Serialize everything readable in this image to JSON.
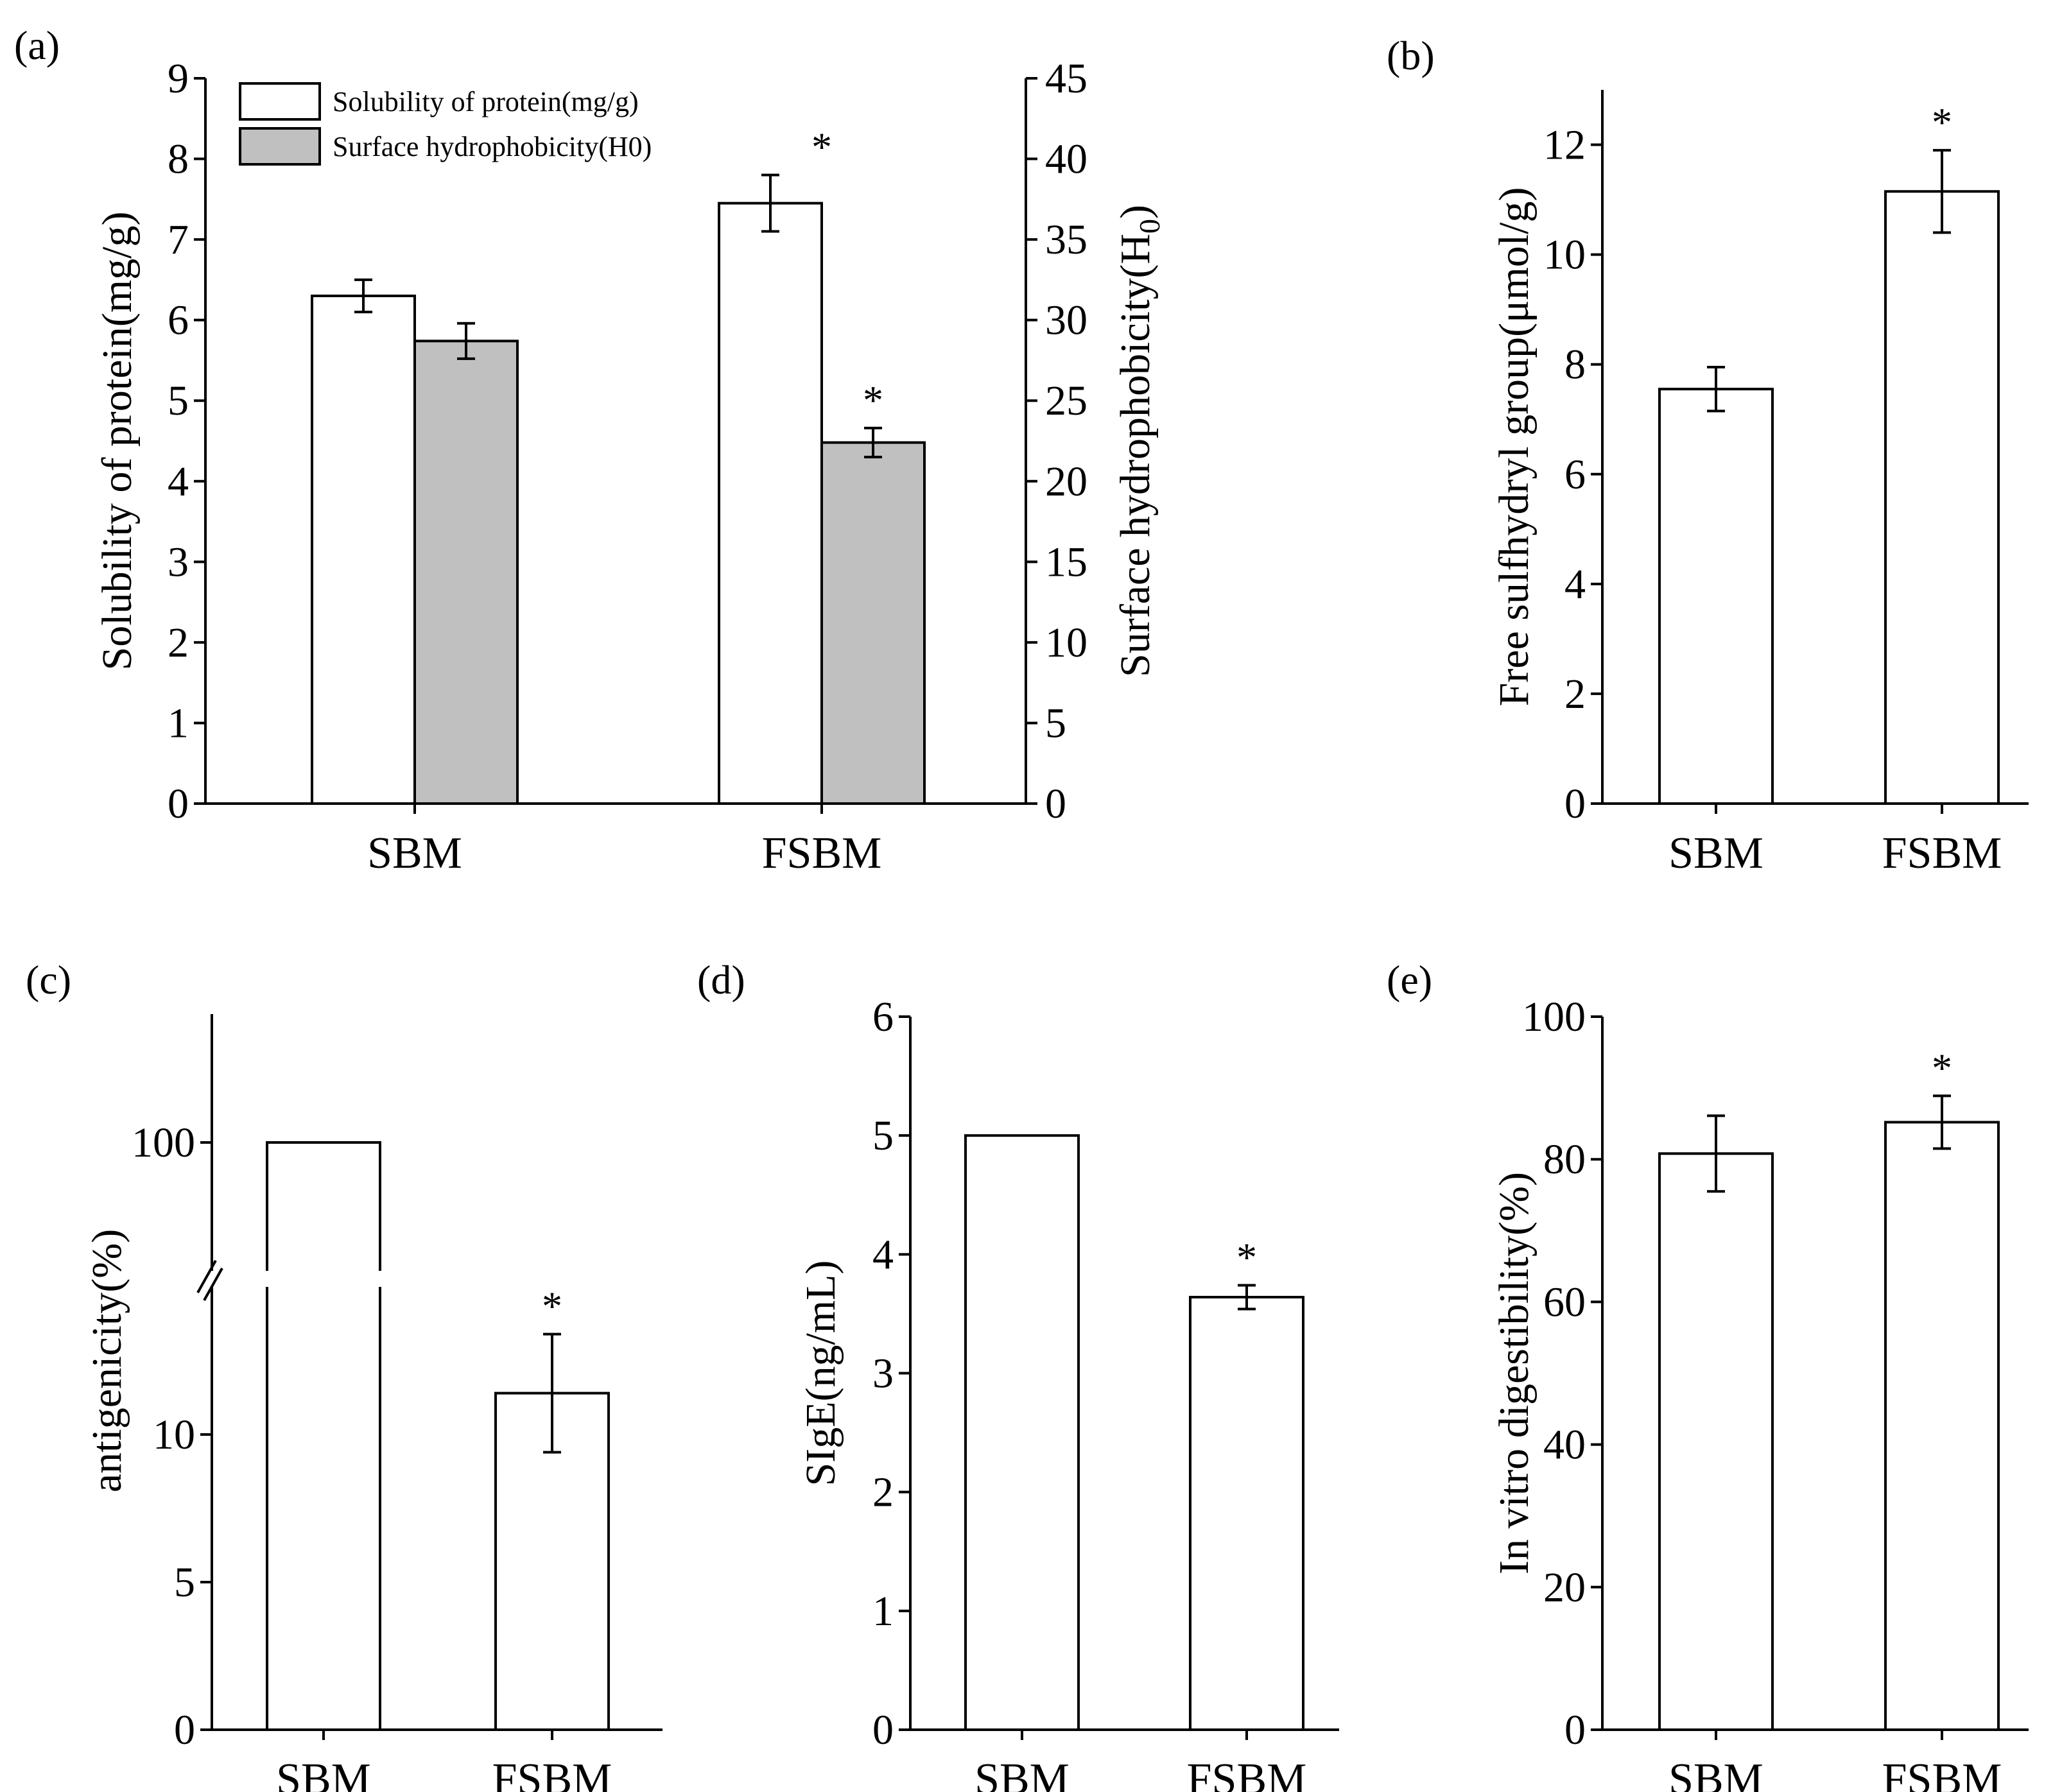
{
  "chart_data": [
    {
      "panel": "(a)",
      "type": "bar",
      "categories": [
        "SBM",
        "FSBM"
      ],
      "series": [
        {
          "name": "Solubility of protein(mg/g)",
          "axis": "left",
          "fill": "#ffffff",
          "values": [
            6.3,
            7.45
          ],
          "errors": [
            0.2,
            0.35
          ],
          "significant": [
            false,
            true
          ]
        },
        {
          "name": "Surface hydrophobicity(H0)",
          "axis": "right",
          "fill": "#c0c0c0",
          "values": [
            28.7,
            22.4
          ],
          "errors": [
            1.1,
            0.9
          ],
          "significant": [
            false,
            true
          ]
        }
      ],
      "ylabel": "Solubility of protein(mg/g)",
      "ylabel2": "Surface hydrophobicity(H",
      "ylabel2_sub": "0",
      "ylabel2_close": ")",
      "ylim": [
        0,
        9
      ],
      "yticks": [
        0,
        1,
        2,
        3,
        4,
        5,
        6,
        7,
        8,
        9
      ],
      "ylim2": [
        0,
        45
      ],
      "yticks2": [
        0,
        5,
        10,
        15,
        20,
        25,
        30,
        35,
        40,
        45
      ],
      "legend_position": "top-left"
    },
    {
      "panel": "(b)",
      "type": "bar",
      "categories": [
        "SBM",
        "FSBM"
      ],
      "values": [
        7.55,
        11.15
      ],
      "errors": [
        0.4,
        0.75
      ],
      "significant": [
        false,
        true
      ],
      "ylabel": "Free sulfhydryl group(μmol/g)",
      "ylim": [
        0,
        13
      ],
      "yticks": [
        0,
        2,
        4,
        6,
        8,
        10,
        12
      ]
    },
    {
      "panel": "(c)",
      "type": "bar",
      "categories": [
        "SBM",
        "FSBM"
      ],
      "values": [
        100,
        11.4
      ],
      "errors": [
        0,
        2
      ],
      "significant": [
        false,
        true
      ],
      "ylabel": "antigenicity(%)",
      "axis_break": true,
      "lower_range": [
        0,
        15
      ],
      "upper_range": [
        85,
        115
      ],
      "yticks": [
        0,
        5,
        10,
        100
      ]
    },
    {
      "panel": "(d)",
      "type": "bar",
      "categories": [
        "SBM",
        "FSBM"
      ],
      "values": [
        5.0,
        3.64
      ],
      "errors": [
        0,
        0.1
      ],
      "significant": [
        false,
        true
      ],
      "ylabel": "SIgE(ng/mL)",
      "ylim": [
        0,
        6
      ],
      "yticks": [
        0,
        1,
        2,
        3,
        4,
        5,
        6
      ]
    },
    {
      "panel": "(e)",
      "type": "bar",
      "categories": [
        "SBM",
        "FSBM"
      ],
      "values": [
        80.8,
        85.2
      ],
      "errors": [
        5.3,
        3.7
      ],
      "significant": [
        false,
        true
      ],
      "ylabel": "In vitro digestibility(%)",
      "ylim": [
        0,
        100
      ],
      "yticks": [
        0,
        20,
        40,
        60,
        80,
        100
      ]
    }
  ]
}
